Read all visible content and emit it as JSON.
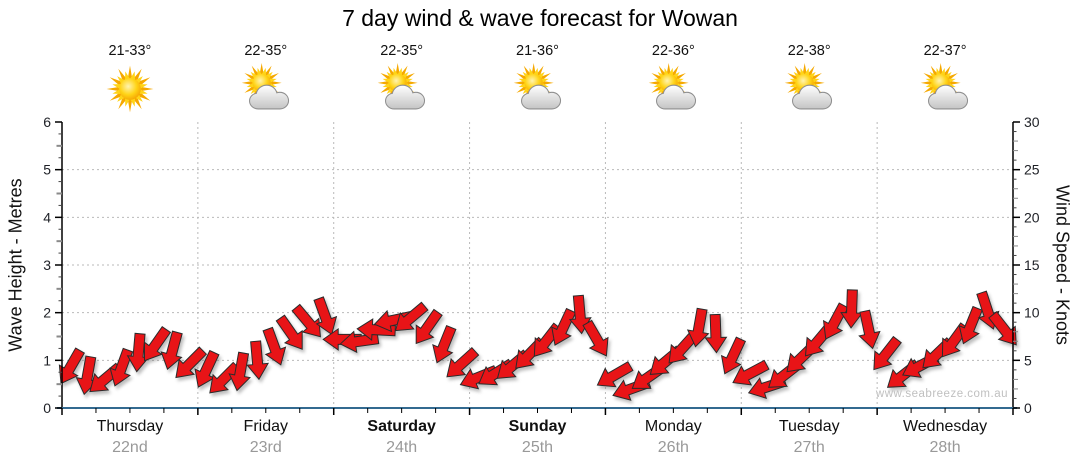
{
  "title": "7 day wind & wave forecast for Wowan",
  "watermark": "www.seabreeze.com.au",
  "days": [
    {
      "name": "Thursday",
      "date": "22nd",
      "temp": "21-33°",
      "icon": "sunny",
      "bold": false
    },
    {
      "name": "Friday",
      "date": "23rd",
      "temp": "22-35°",
      "icon": "partly-cloudy",
      "bold": false
    },
    {
      "name": "Saturday",
      "date": "24th",
      "temp": "22-35°",
      "icon": "partly-cloudy",
      "bold": true
    },
    {
      "name": "Sunday",
      "date": "25th",
      "temp": "21-36°",
      "icon": "partly-cloudy",
      "bold": true
    },
    {
      "name": "Monday",
      "date": "26th",
      "temp": "22-36°",
      "icon": "partly-cloudy",
      "bold": false
    },
    {
      "name": "Tuesday",
      "date": "27th",
      "temp": "22-38°",
      "icon": "partly-cloudy",
      "bold": false
    },
    {
      "name": "Wednesday",
      "date": "28th",
      "temp": "22-37°",
      "icon": "partly-cloudy",
      "bold": false
    }
  ],
  "left_axis": {
    "label": "Wave Height - Metres",
    "min": 0,
    "max": 6,
    "ticks": [
      0,
      1,
      2,
      3,
      4,
      5,
      6
    ]
  },
  "right_axis": {
    "label": "Wind Speed - Knots",
    "min": 0,
    "max": 30,
    "ticks": [
      0,
      5,
      10,
      15,
      20,
      25,
      30
    ]
  },
  "chart_data": {
    "type": "scatter",
    "subtype": "wind-direction-arrows",
    "title": "7 day wind & wave forecast for Wowan",
    "x_categories": [
      "Thursday 22nd",
      "Friday 23rd",
      "Saturday 24th",
      "Sunday 25th",
      "Monday 26th",
      "Tuesday 27th",
      "Wednesday 28th"
    ],
    "points_per_day": 8,
    "ylim_left_metres": [
      0,
      6
    ],
    "ylim_right_knots": [
      0,
      30
    ],
    "grid": "dotted horizontal each metre, dotted vertical each day boundary",
    "wind_speed_knots": [
      4.3,
      3.4,
      3.0,
      4.2,
      5.8,
      6.6,
      6.0,
      4.6,
      4.0,
      3.0,
      3.8,
      5.0,
      6.4,
      7.8,
      9.0,
      9.6,
      7.2,
      7.0,
      8.2,
      9.2,
      9.4,
      8.4,
      6.6,
      4.6,
      3.2,
      3.6,
      4.4,
      5.6,
      7.0,
      8.4,
      9.8,
      7.2,
      3.4,
      2.0,
      3.2,
      4.8,
      6.2,
      8.4,
      7.8,
      5.4,
      3.6,
      2.2,
      3.4,
      5.2,
      7.0,
      9.0,
      10.4,
      8.2,
      5.6,
      3.4,
      4.4,
      5.6,
      7.0,
      8.6,
      10.2,
      8.2
    ],
    "wind_dir_deg_cw_from_east": [
      120,
      100,
      140,
      110,
      95,
      125,
      105,
      135,
      115,
      135,
      100,
      85,
      70,
      55,
      50,
      70,
      180,
      172,
      183,
      168,
      140,
      125,
      112,
      138,
      158,
      148,
      140,
      134,
      128,
      115,
      85,
      60,
      150,
      160,
      145,
      140,
      132,
      100,
      88,
      115,
      152,
      162,
      142,
      136,
      130,
      118,
      92,
      78,
      128,
      142,
      152,
      136,
      126,
      112,
      72,
      52
    ]
  },
  "colors": {
    "arrow": "#e81417",
    "arrow_outline": "#2b2b2b",
    "grid": "#b9b9b9",
    "axis_text": "#1e2026",
    "bottom_axis": "#336a90",
    "date_text": "#999999",
    "watermark_text": "#c0c0c0"
  }
}
